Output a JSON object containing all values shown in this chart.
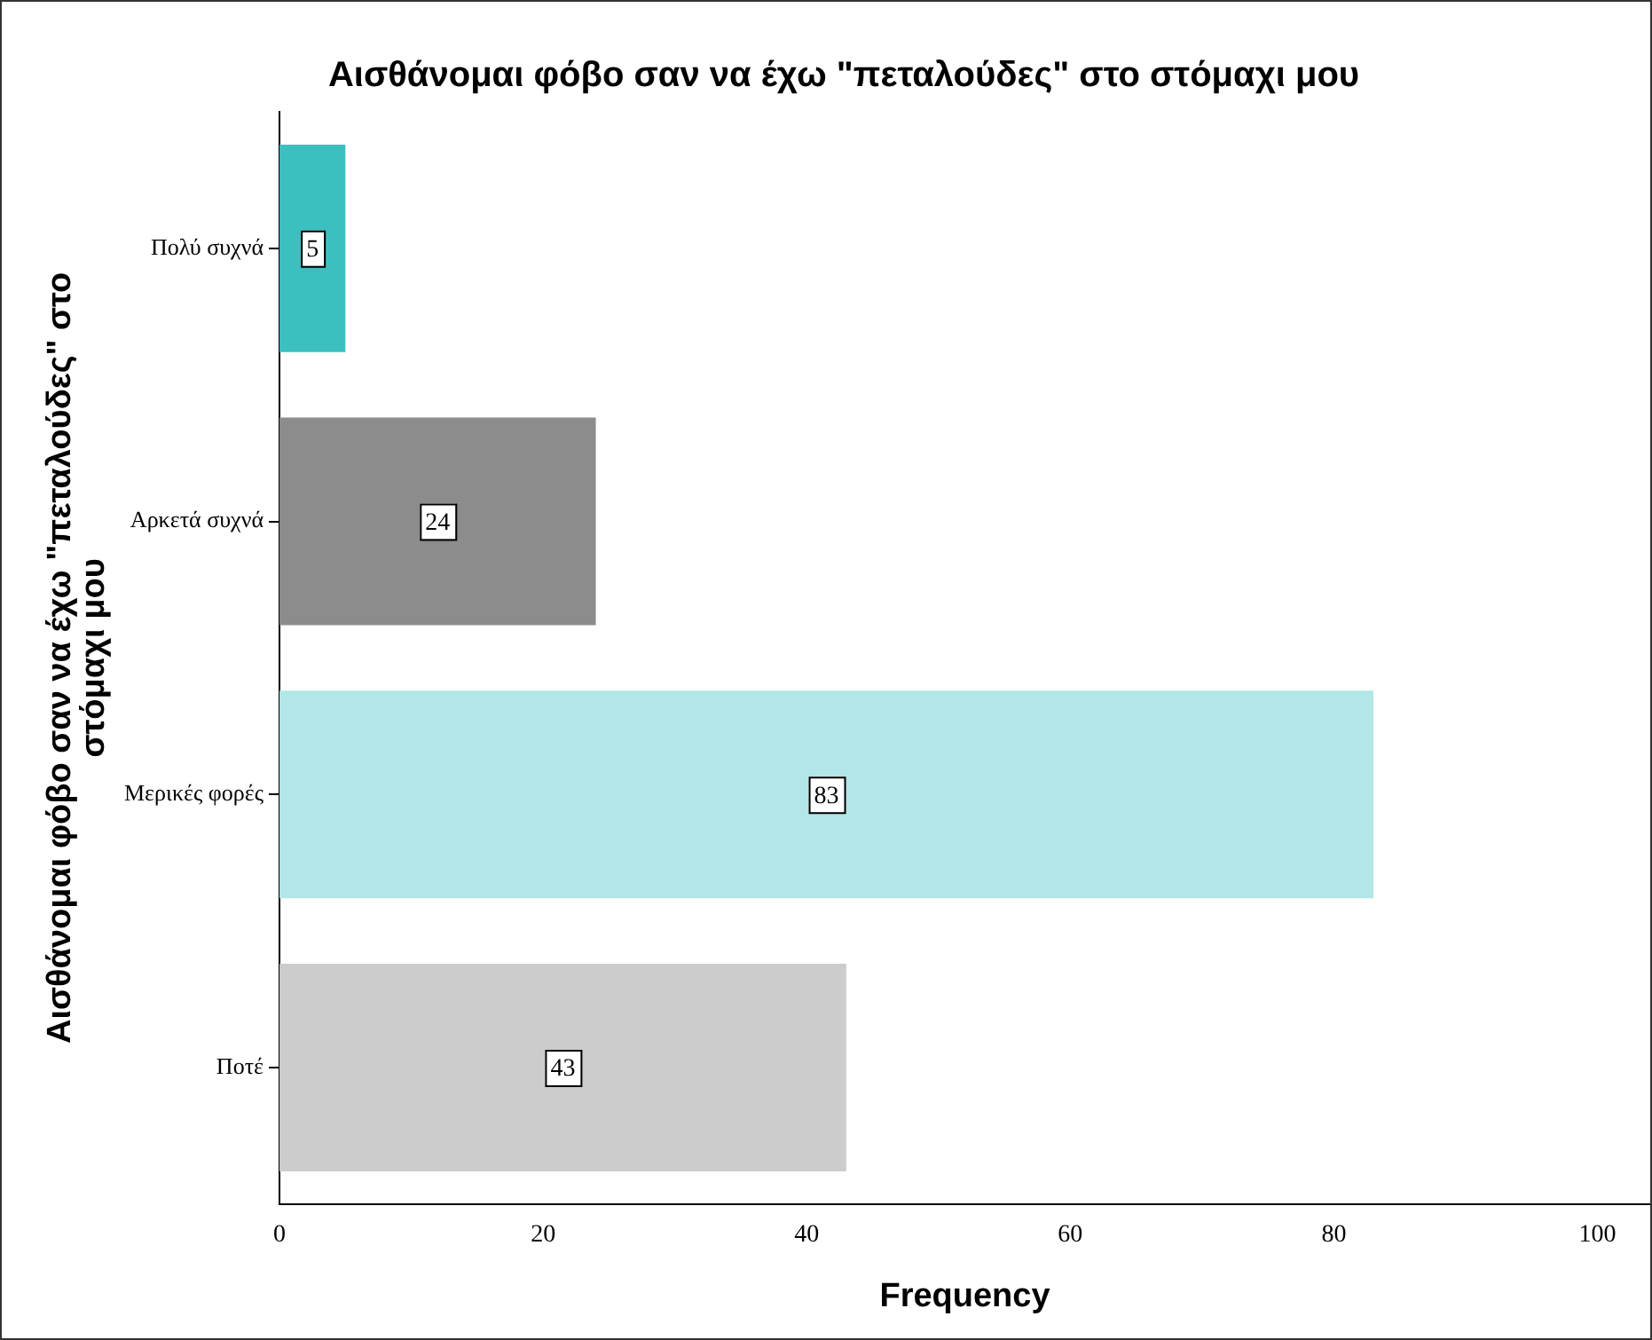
{
  "chart_data": {
    "type": "bar",
    "orientation": "horizontal",
    "title": "Αισθάνομαι φόβο σαν να έχω \"πεταλούδες\" στο στόμαχι μου",
    "xlabel": "Frequency",
    "ylabel": "Αισθάνομαι φόβο σαν να έχω \"πεταλούδες\" στο στόμαχι μου",
    "categories": [
      "Πολύ συχνά",
      "Αρκετά συχνά",
      "Μερικές φορές",
      "Ποτέ"
    ],
    "values": [
      5,
      24,
      83,
      43
    ],
    "colors": [
      "#3cbfbf",
      "#8c8c8c",
      "#b3e6e6",
      "#cccccc"
    ],
    "xlim": [
      0,
      104
    ],
    "xticks": [
      0,
      20,
      40,
      60,
      80,
      100
    ],
    "grid": false,
    "legend": false,
    "data_labels": true
  }
}
